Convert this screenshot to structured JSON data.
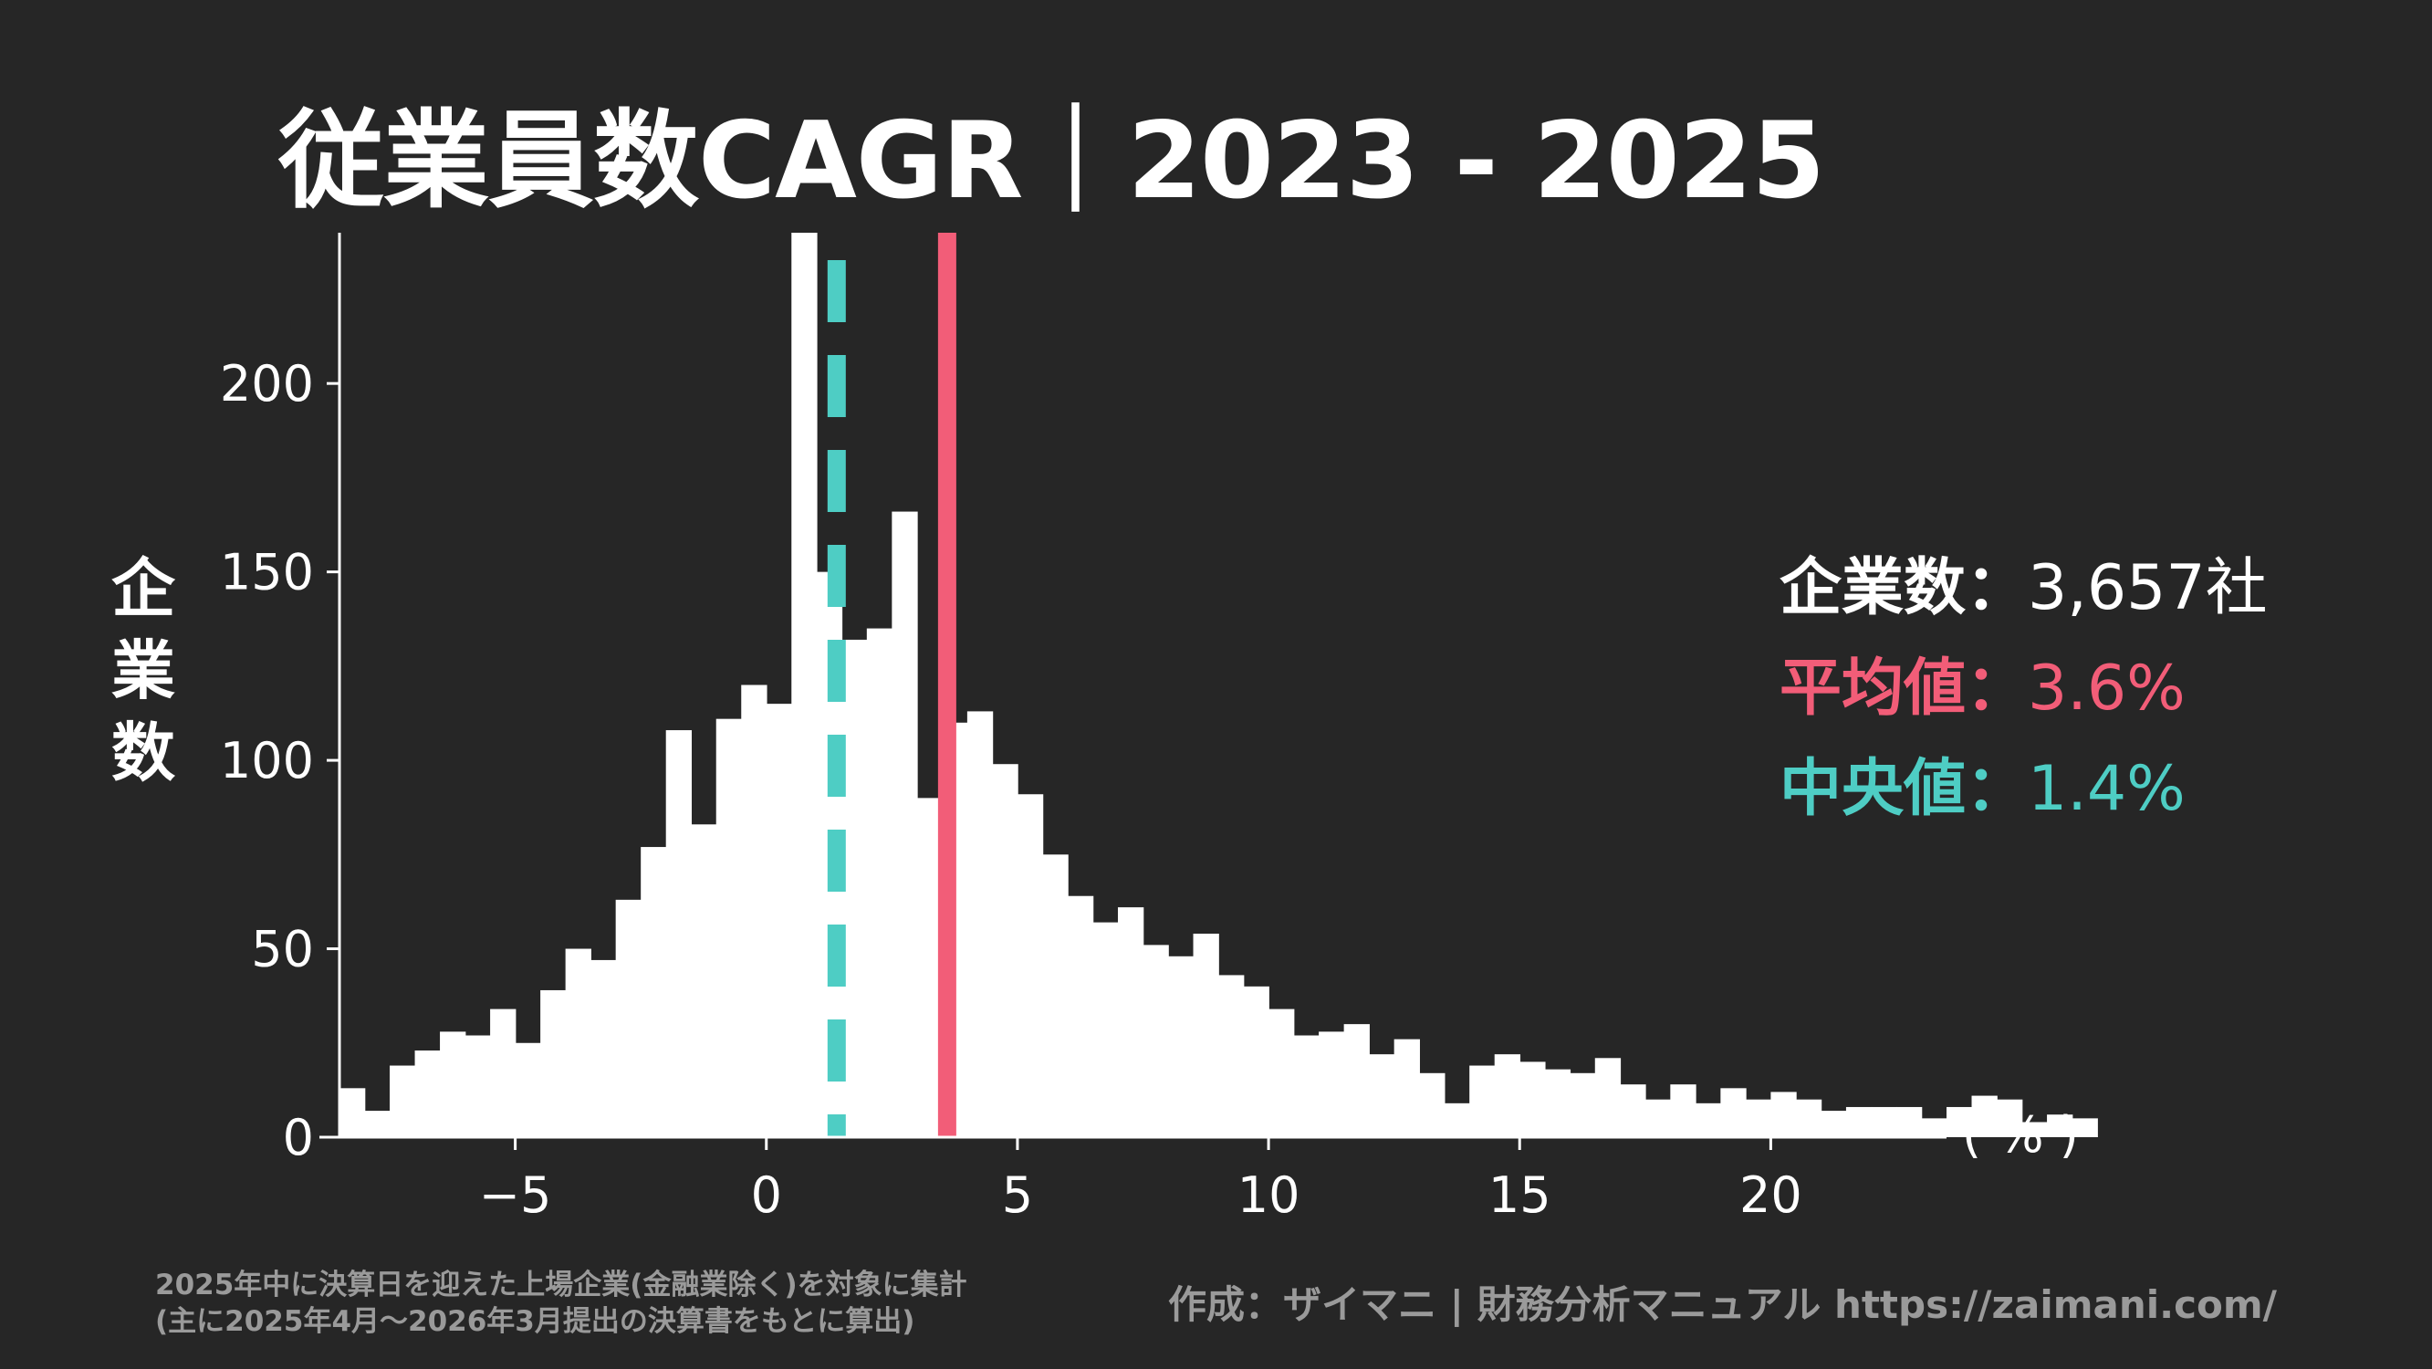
{
  "title": "従業員数CAGR｜2023 - 2025",
  "y_axis_label": [
    "企",
    "業",
    "数"
  ],
  "x_unit": "( % )",
  "stats": {
    "companies_label": "企業数：",
    "companies_value": "3,657社",
    "mean_label": "平均値：",
    "mean_value": "3.6%",
    "median_label": "中央値：",
    "median_value": "1.4%"
  },
  "note_lines": [
    "2025年中に決算日を迎えた上場企業(金融業除く)を対象に集計",
    "(主に2025年4月～2026年3月提出の決算書をもとに算出)"
  ],
  "credit": "作成：ザイマニ | 財務分析マニュアル https://zaimani.com/",
  "colors": {
    "background": "#262626",
    "bars": "#ffffff",
    "mean_line": "#f25d78",
    "median_line": "#4ecdc4"
  },
  "chart_data": {
    "type": "bar",
    "bin_width": 0.5,
    "x_start": -8.5,
    "values": [
      13,
      7,
      19,
      23,
      28,
      27,
      34,
      25,
      39,
      50,
      47,
      63,
      77,
      108,
      83,
      111,
      120,
      115,
      260,
      150,
      132,
      135,
      166,
      90,
      110,
      113,
      99,
      91,
      75,
      64,
      57,
      61,
      51,
      48,
      54,
      43,
      40,
      34,
      27,
      28,
      30,
      22,
      26,
      17,
      9,
      19,
      22,
      20,
      18,
      17,
      21,
      14,
      10,
      14,
      9,
      13,
      10,
      12,
      10,
      7,
      8,
      8,
      8,
      5,
      8,
      11,
      10,
      4,
      6,
      5
    ],
    "xticks": [
      -5,
      0,
      5,
      10,
      15,
      20
    ],
    "xtick_labels": [
      "−5",
      "0",
      "5",
      "10",
      "15",
      "20"
    ],
    "yticks": [
      0,
      50,
      100,
      150,
      200
    ],
    "xlim": [
      -8.5,
      23.5
    ],
    "ylim": [
      0,
      240
    ],
    "mean": 3.6,
    "median": 1.4
  }
}
